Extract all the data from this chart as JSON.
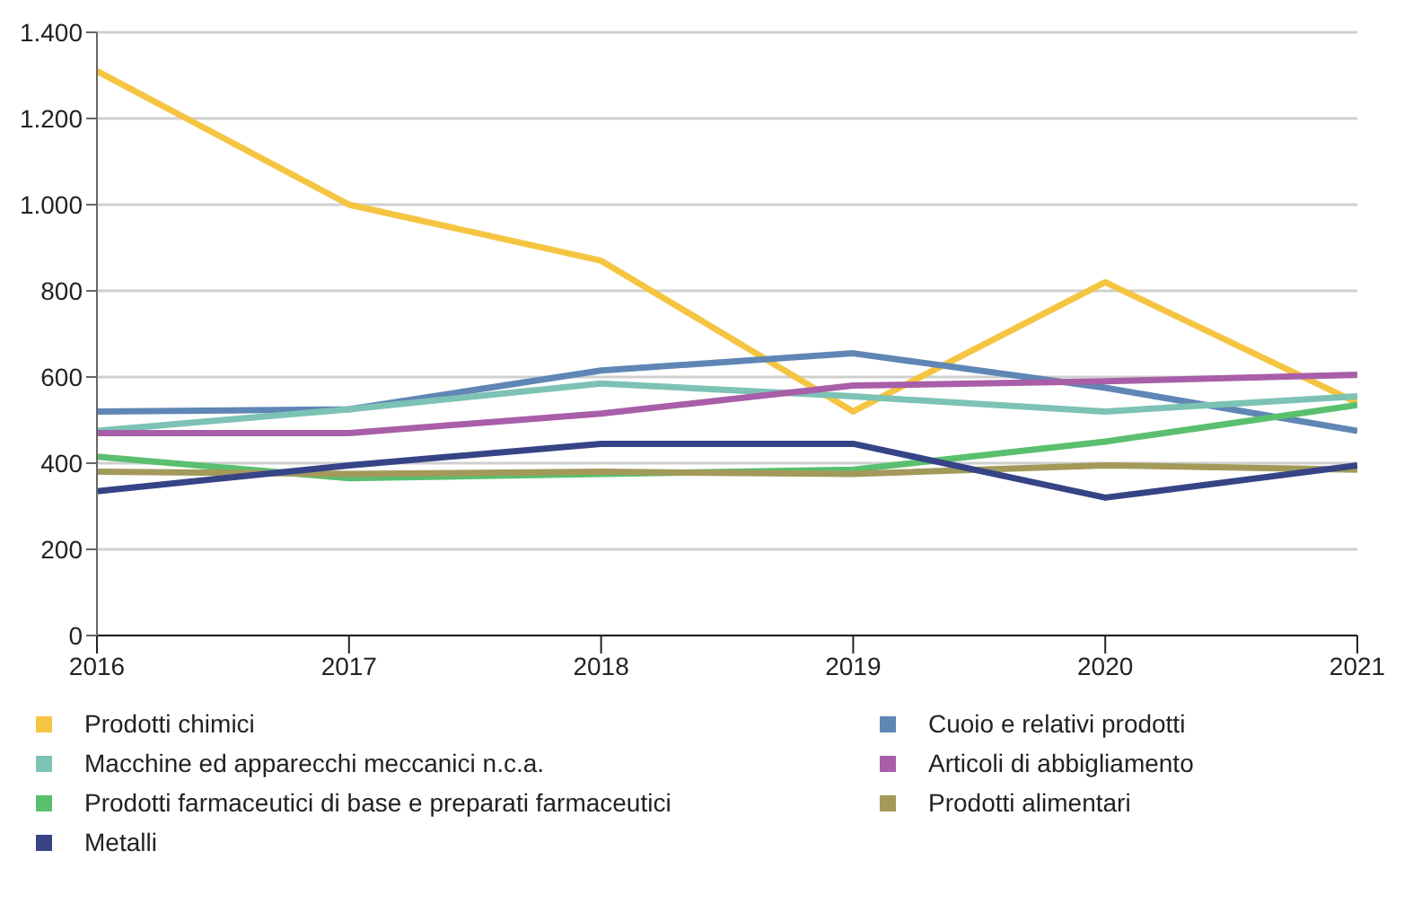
{
  "chart_data": {
    "type": "line",
    "x": [
      2016,
      2017,
      2018,
      2019,
      2020,
      2021
    ],
    "xlim": [
      2016,
      2021
    ],
    "xticks": [
      2016,
      2017,
      2018,
      2019,
      2020,
      2021
    ],
    "ylim": [
      0,
      1400
    ],
    "yticks": [
      0,
      200,
      400,
      600,
      800,
      {
        "value": 1000,
        "label": "1.000"
      },
      {
        "value": 1200,
        "label": "1.200"
      },
      {
        "value": 1400,
        "label": "1.400"
      }
    ],
    "grid": "y",
    "legend": "bottom",
    "marker": "none",
    "line_style": "solid",
    "series": [
      {
        "name": "Prodotti chimici",
        "color": "#f5c542",
        "values": [
          1310,
          1000,
          870,
          520,
          820,
          540
        ]
      },
      {
        "name": "Cuoio e relativi prodotti",
        "color": "#5f86b5",
        "values": [
          520,
          525,
          615,
          655,
          575,
          475
        ]
      },
      {
        "name": "Macchine ed apparecchi meccanici n.c.a.",
        "color": "#7cc2b5",
        "values": [
          475,
          525,
          585,
          555,
          520,
          555
        ]
      },
      {
        "name": "Articoli di abbigliamento",
        "color": "#a85ea8",
        "values": [
          470,
          470,
          515,
          580,
          590,
          605
        ]
      },
      {
        "name": "Prodotti farmaceutici di base e preparati farmaceutici",
        "color": "#5abf6e",
        "values": [
          415,
          365,
          375,
          385,
          450,
          535
        ]
      },
      {
        "name": "Prodotti alimentari",
        "color": "#a39a5a",
        "values": [
          380,
          375,
          380,
          375,
          395,
          385
        ]
      },
      {
        "name": "Metalli",
        "color": "#364486",
        "values": [
          335,
          395,
          445,
          445,
          320,
          395
        ]
      }
    ]
  }
}
